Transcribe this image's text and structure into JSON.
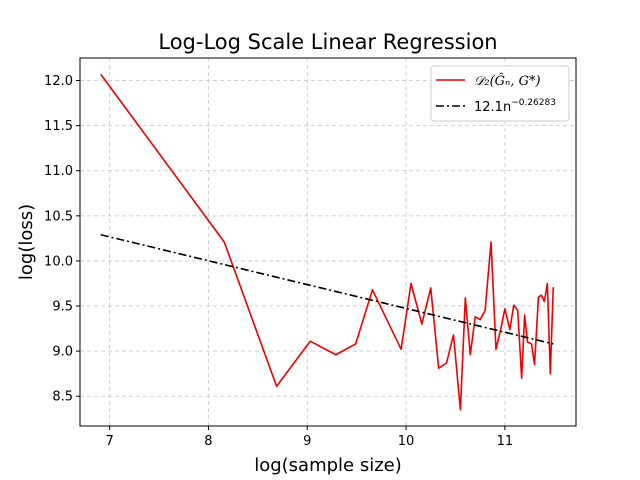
{
  "chart_data": {
    "type": "line",
    "title": "Log-Log Scale Linear Regression",
    "xlabel": "log(sample size)",
    "ylabel": "log(loss)",
    "xlim": [
      6.7,
      11.72
    ],
    "ylim": [
      8.17,
      12.25
    ],
    "x_ticks": [
      7,
      8,
      9,
      10,
      11
    ],
    "y_ticks": [
      8.5,
      9.0,
      9.5,
      10.0,
      10.5,
      11.0,
      11.5,
      12.0
    ],
    "x_tick_labels": [
      "7",
      "8",
      "9",
      "10",
      "11"
    ],
    "y_tick_labels": [
      "8.5",
      "9.0",
      "9.5",
      "10.0",
      "10.5",
      "11.0",
      "11.5",
      "12.0"
    ],
    "grid": true,
    "legend_position": "top-right",
    "legend": {
      "series1_label": "𝒟₂(Ĝₙ, G*)",
      "series2_label_base": "12.1n",
      "series2_label_exp": "−0.26283"
    },
    "series": [
      {
        "color": "#ee0000",
        "style": "solid",
        "x": [
          6.91,
          8.16,
          8.69,
          9.03,
          9.29,
          9.49,
          9.66,
          9.95,
          10.05,
          10.16,
          10.25,
          10.33,
          10.41,
          10.48,
          10.55,
          10.6,
          10.65,
          10.7,
          10.75,
          10.8,
          10.86,
          10.91,
          10.96,
          11.0,
          11.05,
          11.09,
          11.13,
          11.17,
          11.2,
          11.23,
          11.27,
          11.3,
          11.34,
          11.37,
          11.4,
          11.43,
          11.46,
          11.49
        ],
        "y": [
          12.07,
          10.21,
          8.61,
          9.11,
          8.96,
          9.08,
          9.68,
          9.02,
          9.75,
          9.3,
          9.7,
          8.81,
          8.87,
          9.18,
          8.35,
          9.59,
          8.96,
          9.38,
          9.35,
          9.45,
          10.21,
          9.02,
          9.25,
          9.47,
          9.24,
          9.51,
          9.45,
          8.7,
          9.4,
          9.1,
          9.08,
          8.85,
          9.6,
          9.62,
          9.55,
          9.75,
          8.75,
          9.71
        ]
      },
      {
        "color": "#000000",
        "style": "dashdot",
        "x": [
          6.91,
          11.49
        ],
        "y": [
          10.29,
          9.08
        ]
      }
    ]
  }
}
